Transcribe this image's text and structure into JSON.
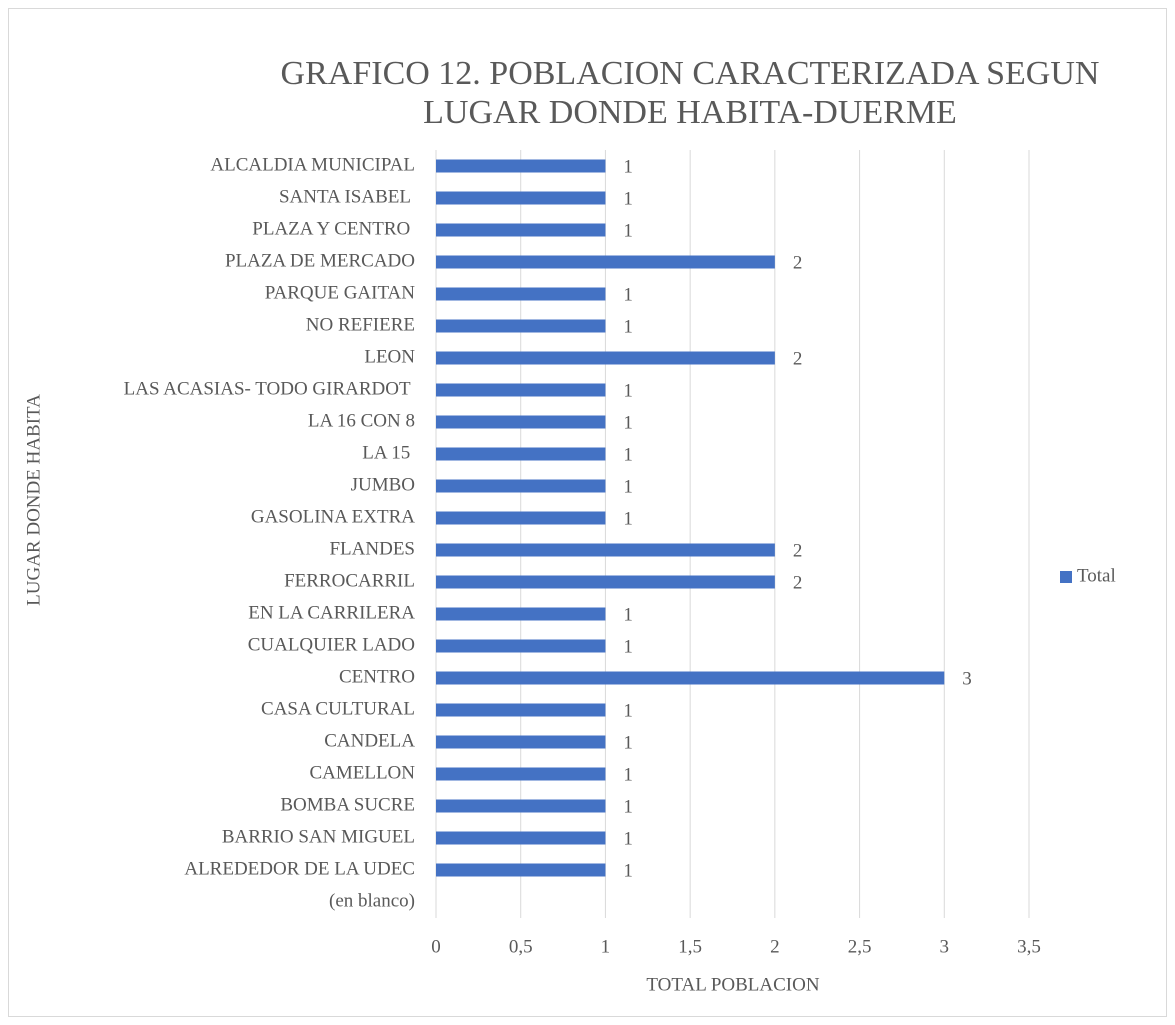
{
  "chart_data": {
    "type": "bar",
    "orientation": "horizontal",
    "title": [
      "GRAFICO 12. POBLACION CARACTERIZADA SEGUN",
      "LUGAR DONDE HABITA-DUERME"
    ],
    "y_label": "LUGAR DONDE HABITA",
    "x_label": "TOTAL POBLACION",
    "categories": [
      "(en blanco)",
      "ALREDEDOR DE LA UDEC",
      "BARRIO SAN MIGUEL",
      "BOMBA SUCRE",
      "CAMELLON",
      "CANDELA",
      "CASA CULTURAL",
      "CENTRO",
      "CUALQUIER LADO",
      "EN LA CARRILERA",
      "FERROCARRIL",
      "FLANDES",
      "GASOLINA EXTRA",
      "JUMBO",
      "LA 15 ",
      "LA 16 CON 8",
      "LAS ACASIAS- TODO GIRARDOT ",
      "LEON",
      "NO REFIERE",
      "PARQUE GAITAN",
      "PLAZA DE MERCADO",
      "PLAZA Y CENTRO ",
      "SANTA ISABEL ",
      "ALCALDIA MUNICIPAL"
    ],
    "series": [
      {
        "name": "Total",
        "color": "#4472c4",
        "values": [
          null,
          1,
          1,
          1,
          1,
          1,
          1,
          3,
          1,
          1,
          2,
          2,
          1,
          1,
          1,
          1,
          1,
          2,
          1,
          1,
          2,
          1,
          1,
          1
        ]
      }
    ],
    "xlim": [
      0,
      3.5
    ],
    "xticks": [
      0,
      {
        "value": 0.5,
        "label": "0,5"
      },
      1,
      {
        "value": 1.5,
        "label": "1,5"
      },
      2,
      {
        "value": 2.5,
        "label": "2,5"
      },
      3,
      {
        "value": 3.5,
        "label": "3,5"
      }
    ],
    "grid": true,
    "legend": "right"
  }
}
